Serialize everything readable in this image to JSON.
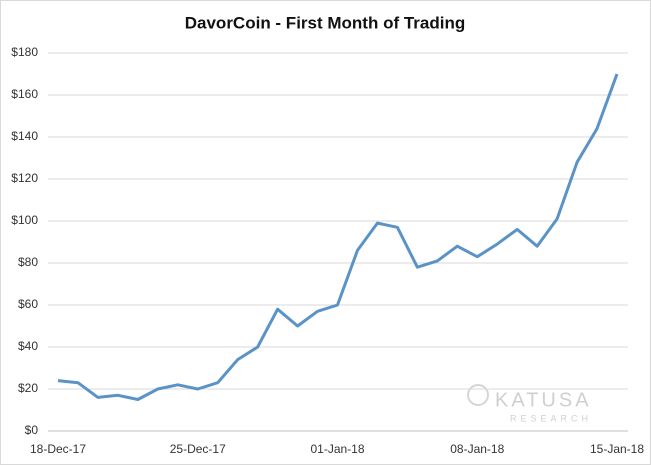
{
  "chart_data": {
    "type": "line",
    "title": "DavorCoin  - First Month of Trading",
    "categories": [
      "18-Dec-17",
      null,
      null,
      null,
      null,
      null,
      null,
      "25-Dec-17",
      null,
      null,
      null,
      null,
      null,
      null,
      "01-Jan-18",
      null,
      null,
      null,
      null,
      null,
      null,
      "08-Jan-18",
      null,
      null,
      null,
      null,
      null,
      null,
      "15-Jan-18"
    ],
    "series": [
      {
        "name": "DavorCoin",
        "color": "#5b93c7",
        "values": [
          24,
          23,
          16,
          17,
          15,
          20,
          22,
          20,
          23,
          34,
          40,
          58,
          50,
          57,
          60,
          86,
          99,
          97,
          78,
          81,
          88,
          83,
          89,
          96,
          88,
          101,
          128,
          144,
          170
        ]
      }
    ],
    "ylim": [
      0,
      180
    ],
    "yticks": [
      {
        "value": 0,
        "label": "$0"
      },
      {
        "value": 20,
        "label": "$20"
      },
      {
        "value": 40,
        "label": "$40"
      },
      {
        "value": 60,
        "label": "$60"
      },
      {
        "value": 80,
        "label": "$80"
      },
      {
        "value": 100,
        "label": "$100"
      },
      {
        "value": 120,
        "label": "$120"
      },
      {
        "value": 140,
        "label": "$140"
      },
      {
        "value": 160,
        "label": "$160"
      },
      {
        "value": 180,
        "label": "$180"
      }
    ],
    "grid": true,
    "watermark": {
      "name": "KATUSA",
      "sub": "RESEARCH"
    }
  }
}
